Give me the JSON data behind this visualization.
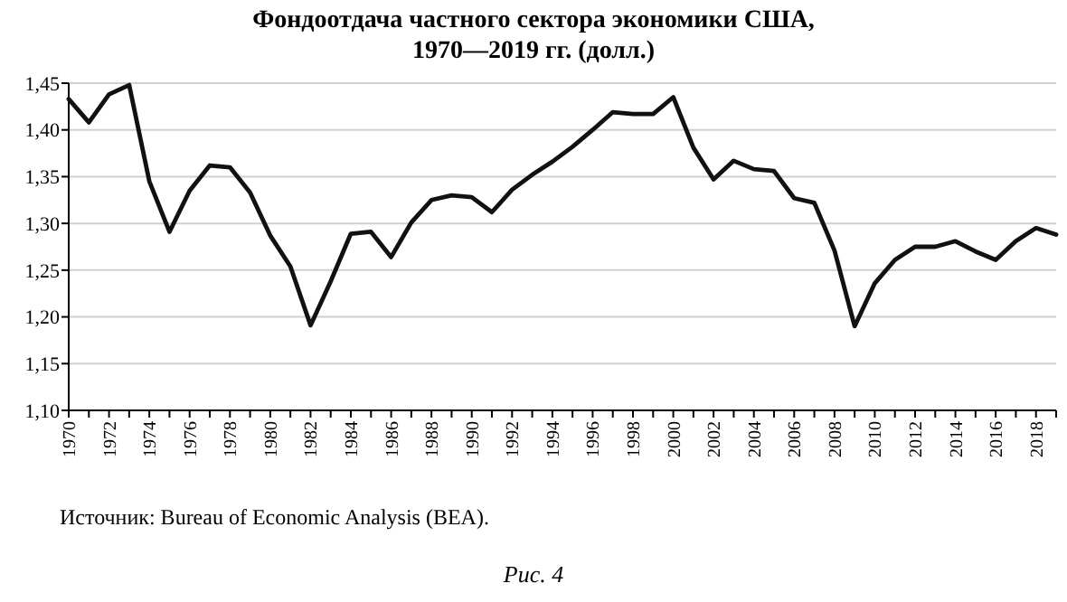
{
  "chart_data": {
    "type": "line",
    "title": "Фондоотдача частного сектора экономики США,",
    "subtitle": "1970—2019 гг. (долл.)",
    "categories": [
      "1970",
      null,
      "1972",
      null,
      "1974",
      null,
      "1976",
      null,
      "1978",
      null,
      "1980",
      null,
      "1982",
      null,
      "1984",
      null,
      "1986",
      null,
      "1988",
      null,
      "1990",
      null,
      "1992",
      null,
      "1994",
      null,
      "1996",
      null,
      "1998",
      null,
      "2000",
      null,
      "2002",
      null,
      "2004",
      null,
      "2006",
      null,
      "2008",
      null,
      "2010",
      null,
      "2012",
      null,
      "2014",
      null,
      "2016",
      null,
      "2018",
      null
    ],
    "series": [
      {
        "color": "#111111",
        "values": [
          1.433,
          1.408,
          1.438,
          1.448,
          1.345,
          1.291,
          1.335,
          1.362,
          1.36,
          1.333,
          1.287,
          1.254,
          1.191,
          1.238,
          1.289,
          1.291,
          1.264,
          1.301,
          1.325,
          1.33,
          1.328,
          1.312,
          1.336,
          1.352,
          1.366,
          1.382,
          1.4,
          1.419,
          1.417,
          1.417,
          1.435,
          1.381,
          1.347,
          1.367,
          1.358,
          1.356,
          1.327,
          1.322,
          1.271,
          1.19,
          1.236,
          1.261,
          1.275,
          1.275,
          1.281,
          1.27,
          1.261,
          1.281,
          1.295,
          1.288
        ]
      }
    ],
    "ylim": [
      1.1,
      1.45
    ],
    "yticks": [
      {
        "value": 1.1,
        "label": "1,10"
      },
      {
        "value": 1.15,
        "label": "1,15"
      },
      {
        "value": 1.2,
        "label": "1,20"
      },
      {
        "value": 1.25,
        "label": "1,25"
      },
      {
        "value": 1.3,
        "label": "1,30"
      },
      {
        "value": 1.35,
        "label": "1,35"
      },
      {
        "value": 1.4,
        "label": "1,40"
      },
      {
        "value": 1.45,
        "label": "1,45"
      }
    ],
    "grid": "y",
    "marker": "none",
    "line_style": "solid",
    "annotations": [
      "Источник: Bureau of Economic Analysis (BEA).",
      "Рис. 4"
    ]
  }
}
